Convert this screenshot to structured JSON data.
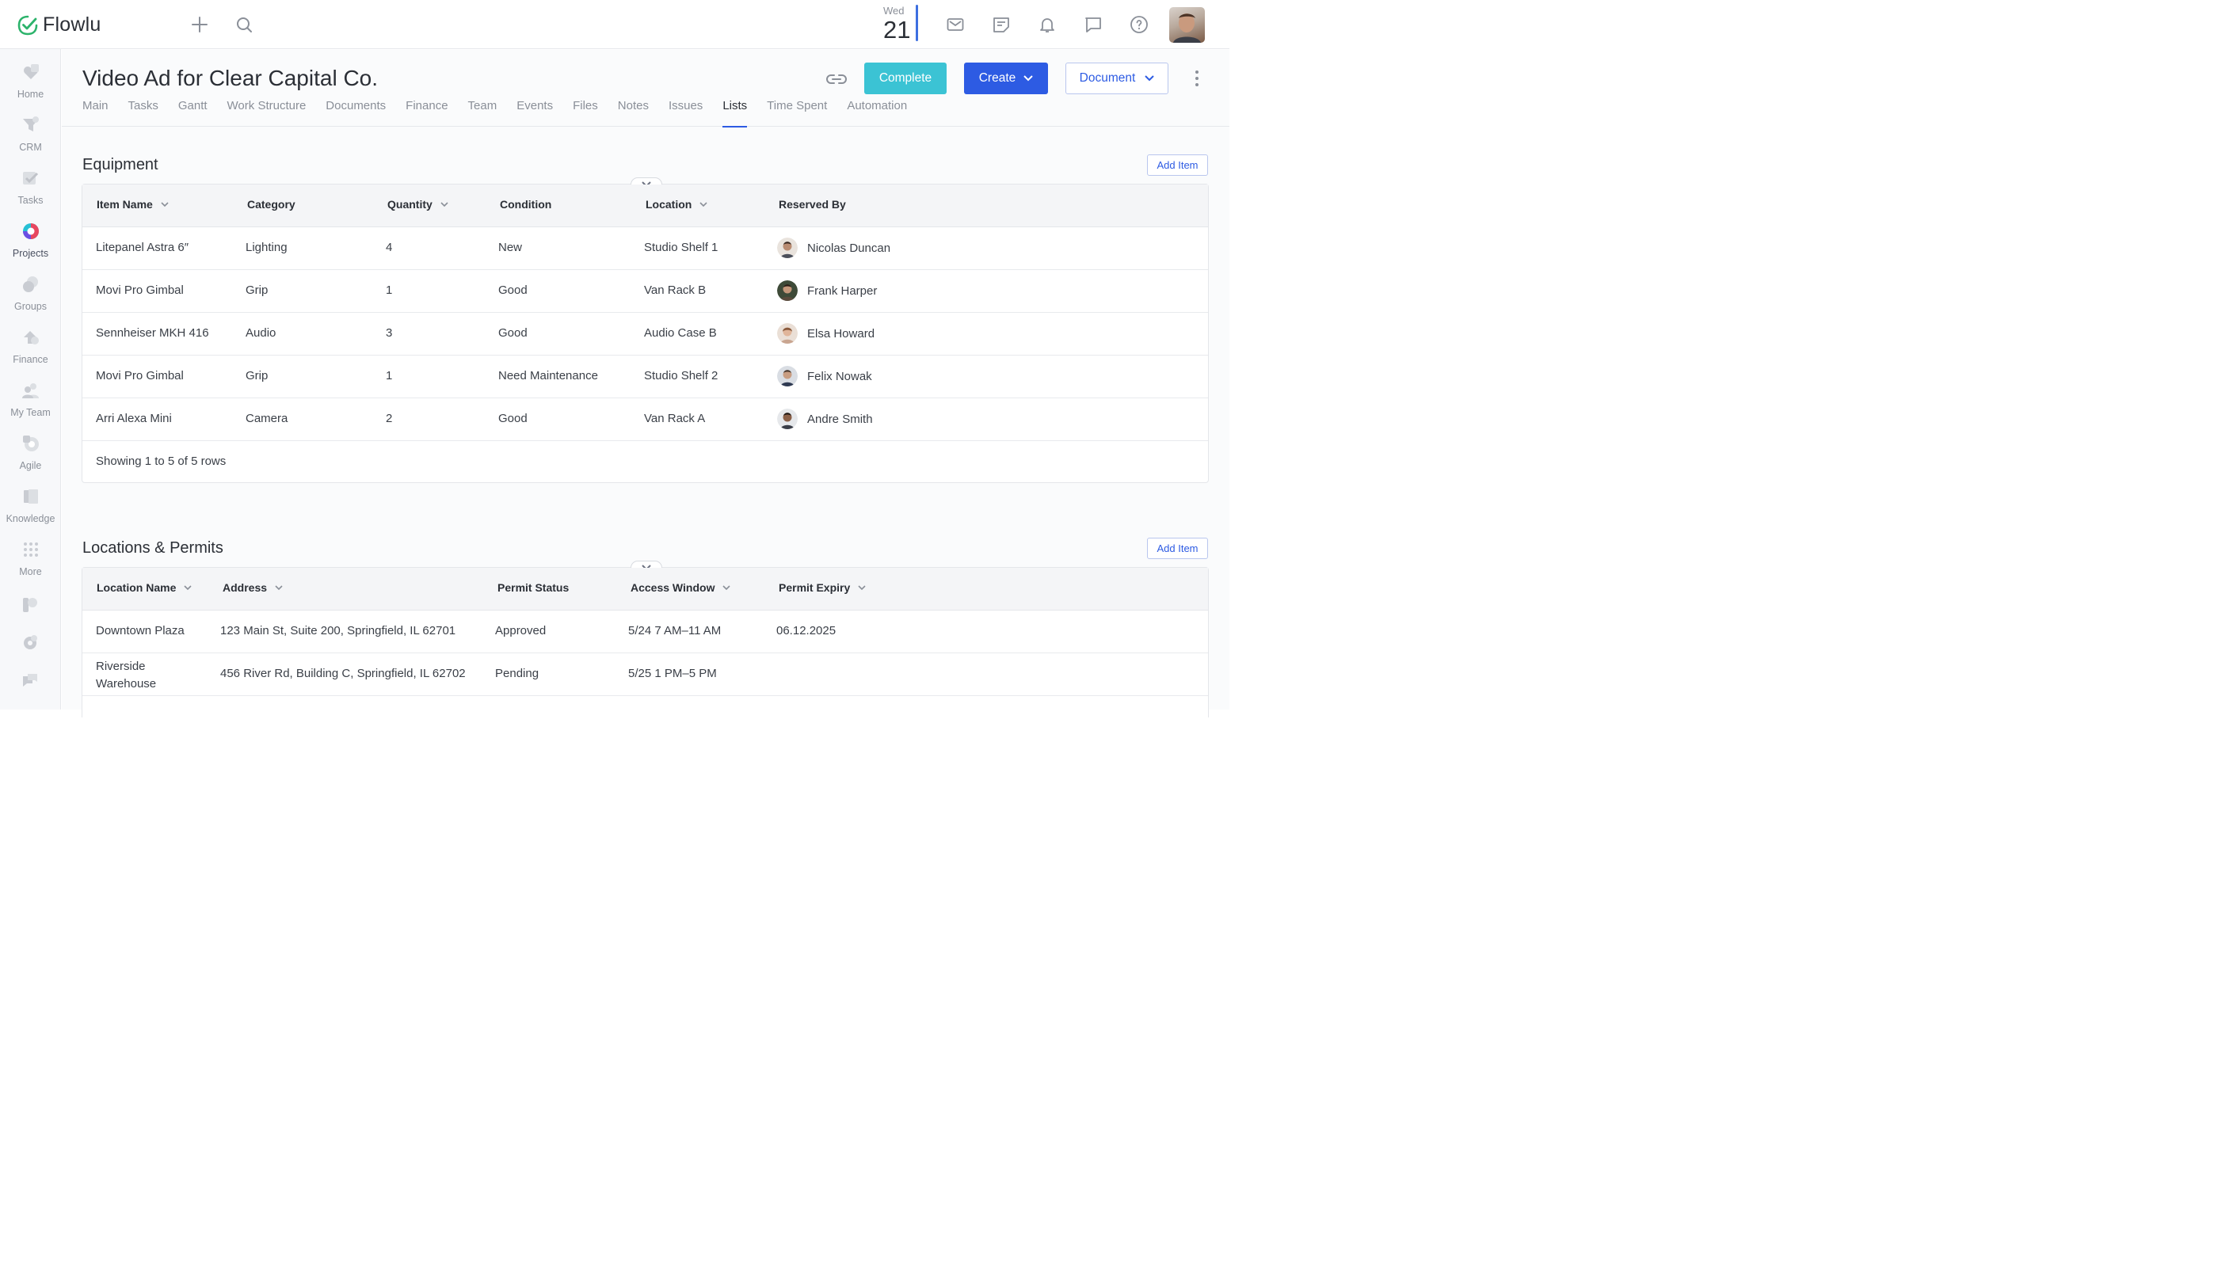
{
  "app": {
    "name": "Flowlu"
  },
  "topbar": {
    "date_dow": "Wed",
    "date_day": "21"
  },
  "sidebar": {
    "items": [
      {
        "label": "Home"
      },
      {
        "label": "CRM"
      },
      {
        "label": "Tasks"
      },
      {
        "label": "Projects"
      },
      {
        "label": "Groups"
      },
      {
        "label": "Finance"
      },
      {
        "label": "My Team"
      },
      {
        "label": "Agile"
      },
      {
        "label": "Knowledge"
      },
      {
        "label": "More"
      }
    ]
  },
  "header": {
    "title": "Video Ad for Clear Capital Co.",
    "complete_label": "Complete",
    "create_label": "Create",
    "document_label": "Document",
    "tabs": [
      {
        "label": "Main"
      },
      {
        "label": "Tasks"
      },
      {
        "label": "Gantt"
      },
      {
        "label": "Work Structure"
      },
      {
        "label": "Documents"
      },
      {
        "label": "Finance"
      },
      {
        "label": "Team"
      },
      {
        "label": "Events"
      },
      {
        "label": "Files"
      },
      {
        "label": "Notes"
      },
      {
        "label": "Issues"
      },
      {
        "label": "Lists"
      },
      {
        "label": "Time Spent"
      },
      {
        "label": "Automation"
      }
    ],
    "active_tab": "Lists"
  },
  "equipment": {
    "title": "Equipment",
    "add_label": "Add Item",
    "columns": [
      "Item Name",
      "Category",
      "Quantity",
      "Condition",
      "Location",
      "Reserved By"
    ],
    "rows": [
      {
        "item": "Litepanel Astra 6″",
        "category": "Lighting",
        "quantity": "4",
        "condition": "New",
        "location": "Studio Shelf 1",
        "reserved_by": "Nicolas Duncan"
      },
      {
        "item": "Movi Pro Gimbal",
        "category": "Grip",
        "quantity": "1",
        "condition": "Good",
        "location": "Van Rack B",
        "reserved_by": "Frank Harper"
      },
      {
        "item": "Sennheiser MKH 416",
        "category": "Audio",
        "quantity": "3",
        "condition": "Good",
        "location": "Audio Case B",
        "reserved_by": "Elsa Howard"
      },
      {
        "item": "Movi Pro Gimbal",
        "category": "Grip",
        "quantity": "1",
        "condition": "Need Maintenance",
        "location": "Studio Shelf 2",
        "reserved_by": "Felix Nowak"
      },
      {
        "item": "Arri Alexa Mini",
        "category": "Camera",
        "quantity": "2",
        "condition": "Good",
        "location": "Van Rack A",
        "reserved_by": "Andre Smith"
      }
    ],
    "footer": "Showing 1 to 5 of 5 rows"
  },
  "locations": {
    "title": "Locations & Permits",
    "add_label": "Add Item",
    "columns": [
      "Location Name",
      "Address",
      "Permit Status",
      "Access Window",
      "Permit Expiry"
    ],
    "rows": [
      {
        "name": "Downtown Plaza",
        "address": "123 Main St, Suite 200, Springfield, IL 62701",
        "status": "Approved",
        "window": "5/24 7 AM–11 AM",
        "expiry": "06.12.2025"
      },
      {
        "name": "Riverside Warehouse",
        "address": "456 River Rd, Building C, Springfield, IL 62702",
        "status": "Pending",
        "window": "5/25 1 PM–5 PM",
        "expiry": ""
      }
    ]
  },
  "colors": {
    "accent": "#2d5be3",
    "complete": "#3bc3d4",
    "logo_green": "#2cb36b"
  }
}
